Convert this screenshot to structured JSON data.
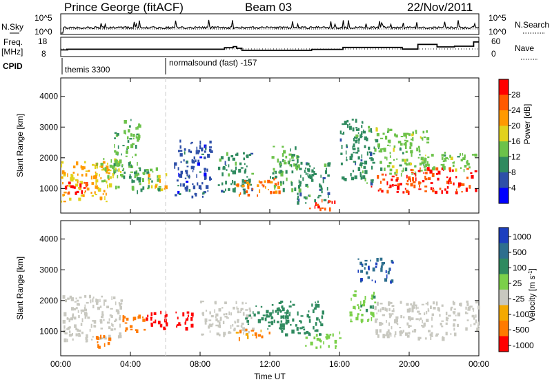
{
  "header": {
    "station": "Prince George (fitACF)",
    "beam": "Beam 03",
    "date": "22/Nov/2011"
  },
  "summary_panels": {
    "nsky_label": "N.Sky",
    "nsearch_label": "N.Search",
    "freq_label_1": "Freq.",
    "freq_label_2": "[MHz]",
    "nave_label": "Nave",
    "cpid_label": "CPID",
    "noise_ticks_left": [
      "10^5",
      "10^0"
    ],
    "noise_ticks_right": [
      "10^5",
      "10^0"
    ],
    "freq_ticks": [
      "18",
      "8"
    ],
    "nave_ticks": [
      "60",
      "0"
    ]
  },
  "cpid": [
    {
      "name": "themis 3300",
      "start_hour": 0
    },
    {
      "name": "normalsound (fast) -157",
      "start_hour": 6
    }
  ],
  "colors": {
    "power_scale": [
      "#0000ff",
      "#2e4fa8",
      "#2f8a5f",
      "#6cc24a",
      "#e2d21c",
      "#ff9900",
      "#ff5a00",
      "#ff0000"
    ],
    "velocity_scale": [
      "#1d3fbf",
      "#2e6f8e",
      "#2f8a5f",
      "#7bd04a",
      "#c8c8c0",
      "#f4a900",
      "#ff7a00",
      "#ff0000"
    ]
  },
  "chart_data": [
    {
      "type": "heatmap",
      "panel": "power",
      "ylabel": "Slant Range [km]",
      "xlabel": "Time UT",
      "x_ticks": [
        "00:00",
        "04:00",
        "08:00",
        "12:00",
        "16:00",
        "20:00",
        "00:00"
      ],
      "x_range_hours": [
        0,
        24
      ],
      "y_ticks": [
        1000,
        2000,
        3000,
        4000
      ],
      "ylim": [
        200,
        4600
      ],
      "colorbar": {
        "label": "Power [dB]",
        "ticks": [
          4,
          8,
          12,
          16,
          20,
          24,
          28
        ],
        "range": [
          0,
          32
        ]
      },
      "regions": [
        {
          "t": [
            0.0,
            2.8
          ],
          "r": [
            600,
            1900
          ],
          "v": 20
        },
        {
          "t": [
            0.2,
            1.6
          ],
          "r": [
            800,
            1300
          ],
          "v": 28
        },
        {
          "t": [
            2.0,
            3.5
          ],
          "r": [
            1000,
            2000
          ],
          "v": 16
        },
        {
          "t": [
            3.0,
            4.5
          ],
          "r": [
            1400,
            3300
          ],
          "v": 12
        },
        {
          "t": [
            4.0,
            5.8
          ],
          "r": [
            900,
            1700
          ],
          "v": 12
        },
        {
          "t": [
            5.0,
            6.0
          ],
          "r": [
            1000,
            1500
          ],
          "v": 20
        },
        {
          "t": [
            6.5,
            8.6
          ],
          "r": [
            700,
            2600
          ],
          "v": 6
        },
        {
          "t": [
            9.0,
            11.0
          ],
          "r": [
            900,
            2200
          ],
          "v": 10
        },
        {
          "t": [
            10.0,
            12.5
          ],
          "r": [
            800,
            1400
          ],
          "v": 24
        },
        {
          "t": [
            12.0,
            13.8
          ],
          "r": [
            1000,
            2400
          ],
          "v": 12
        },
        {
          "t": [
            13.5,
            15.4
          ],
          "r": [
            500,
            1900
          ],
          "v": 10
        },
        {
          "t": [
            14.2,
            15.8
          ],
          "r": [
            350,
            700
          ],
          "v": 28
        },
        {
          "t": [
            16.0,
            18.0
          ],
          "r": [
            1200,
            3300
          ],
          "v": 10
        },
        {
          "t": [
            17.8,
            20.0
          ],
          "r": [
            900,
            1500
          ],
          "v": 28
        },
        {
          "t": [
            18.0,
            21.0
          ],
          "r": [
            1500,
            3000
          ],
          "v": 14
        },
        {
          "t": [
            20.0,
            23.8
          ],
          "r": [
            900,
            1700
          ],
          "v": 28
        },
        {
          "t": [
            20.5,
            23.8
          ],
          "r": [
            1600,
            2200
          ],
          "v": 14
        }
      ]
    },
    {
      "type": "heatmap",
      "panel": "velocity",
      "ylabel": "Slant Range [km]",
      "xlabel": "Time UT",
      "x_ticks": [
        "00:00",
        "04:00",
        "08:00",
        "12:00",
        "16:00",
        "20:00",
        "00:00"
      ],
      "x_range_hours": [
        0,
        24
      ],
      "y_ticks": [
        1000,
        2000,
        3000,
        4000
      ],
      "ylim": [
        200,
        4600
      ],
      "colorbar": {
        "label": "Velocity [m s^-1]",
        "ticks": [
          "1000",
          "500",
          "100",
          "25",
          "-25",
          "-100",
          "-500",
          "-1000"
        ]
      },
      "regions": [
        {
          "t": [
            0.0,
            3.5
          ],
          "r": [
            700,
            2200
          ],
          "v": 0
        },
        {
          "t": [
            2.0,
            3.0
          ],
          "r": [
            500,
            900
          ],
          "v": -300
        },
        {
          "t": [
            3.5,
            4.8
          ],
          "r": [
            1000,
            1600
          ],
          "v": -400
        },
        {
          "t": [
            4.8,
            6.3
          ],
          "r": [
            1100,
            1700
          ],
          "v": -1000
        },
        {
          "t": [
            6.3,
            7.6
          ],
          "r": [
            1100,
            1700
          ],
          "v": -1000
        },
        {
          "t": [
            8.0,
            11.0
          ],
          "r": [
            900,
            2000
          ],
          "v": 0
        },
        {
          "t": [
            10.5,
            13.0
          ],
          "r": [
            1100,
            1900
          ],
          "v": 200
        },
        {
          "t": [
            10.0,
            12.0
          ],
          "r": [
            800,
            1100
          ],
          "v": -100
        },
        {
          "t": [
            12.5,
            15.0
          ],
          "r": [
            900,
            2000
          ],
          "v": 150
        },
        {
          "t": [
            14.0,
            16.0
          ],
          "r": [
            500,
            1000
          ],
          "v": 60
        },
        {
          "t": [
            17.0,
            19.0
          ],
          "r": [
            2600,
            3400
          ],
          "v": 700
        },
        {
          "t": [
            18.0,
            24.0
          ],
          "r": [
            800,
            2000
          ],
          "v": 0
        },
        {
          "t": [
            16.5,
            18.0
          ],
          "r": [
            1300,
            2400
          ],
          "v": 80
        }
      ]
    }
  ]
}
